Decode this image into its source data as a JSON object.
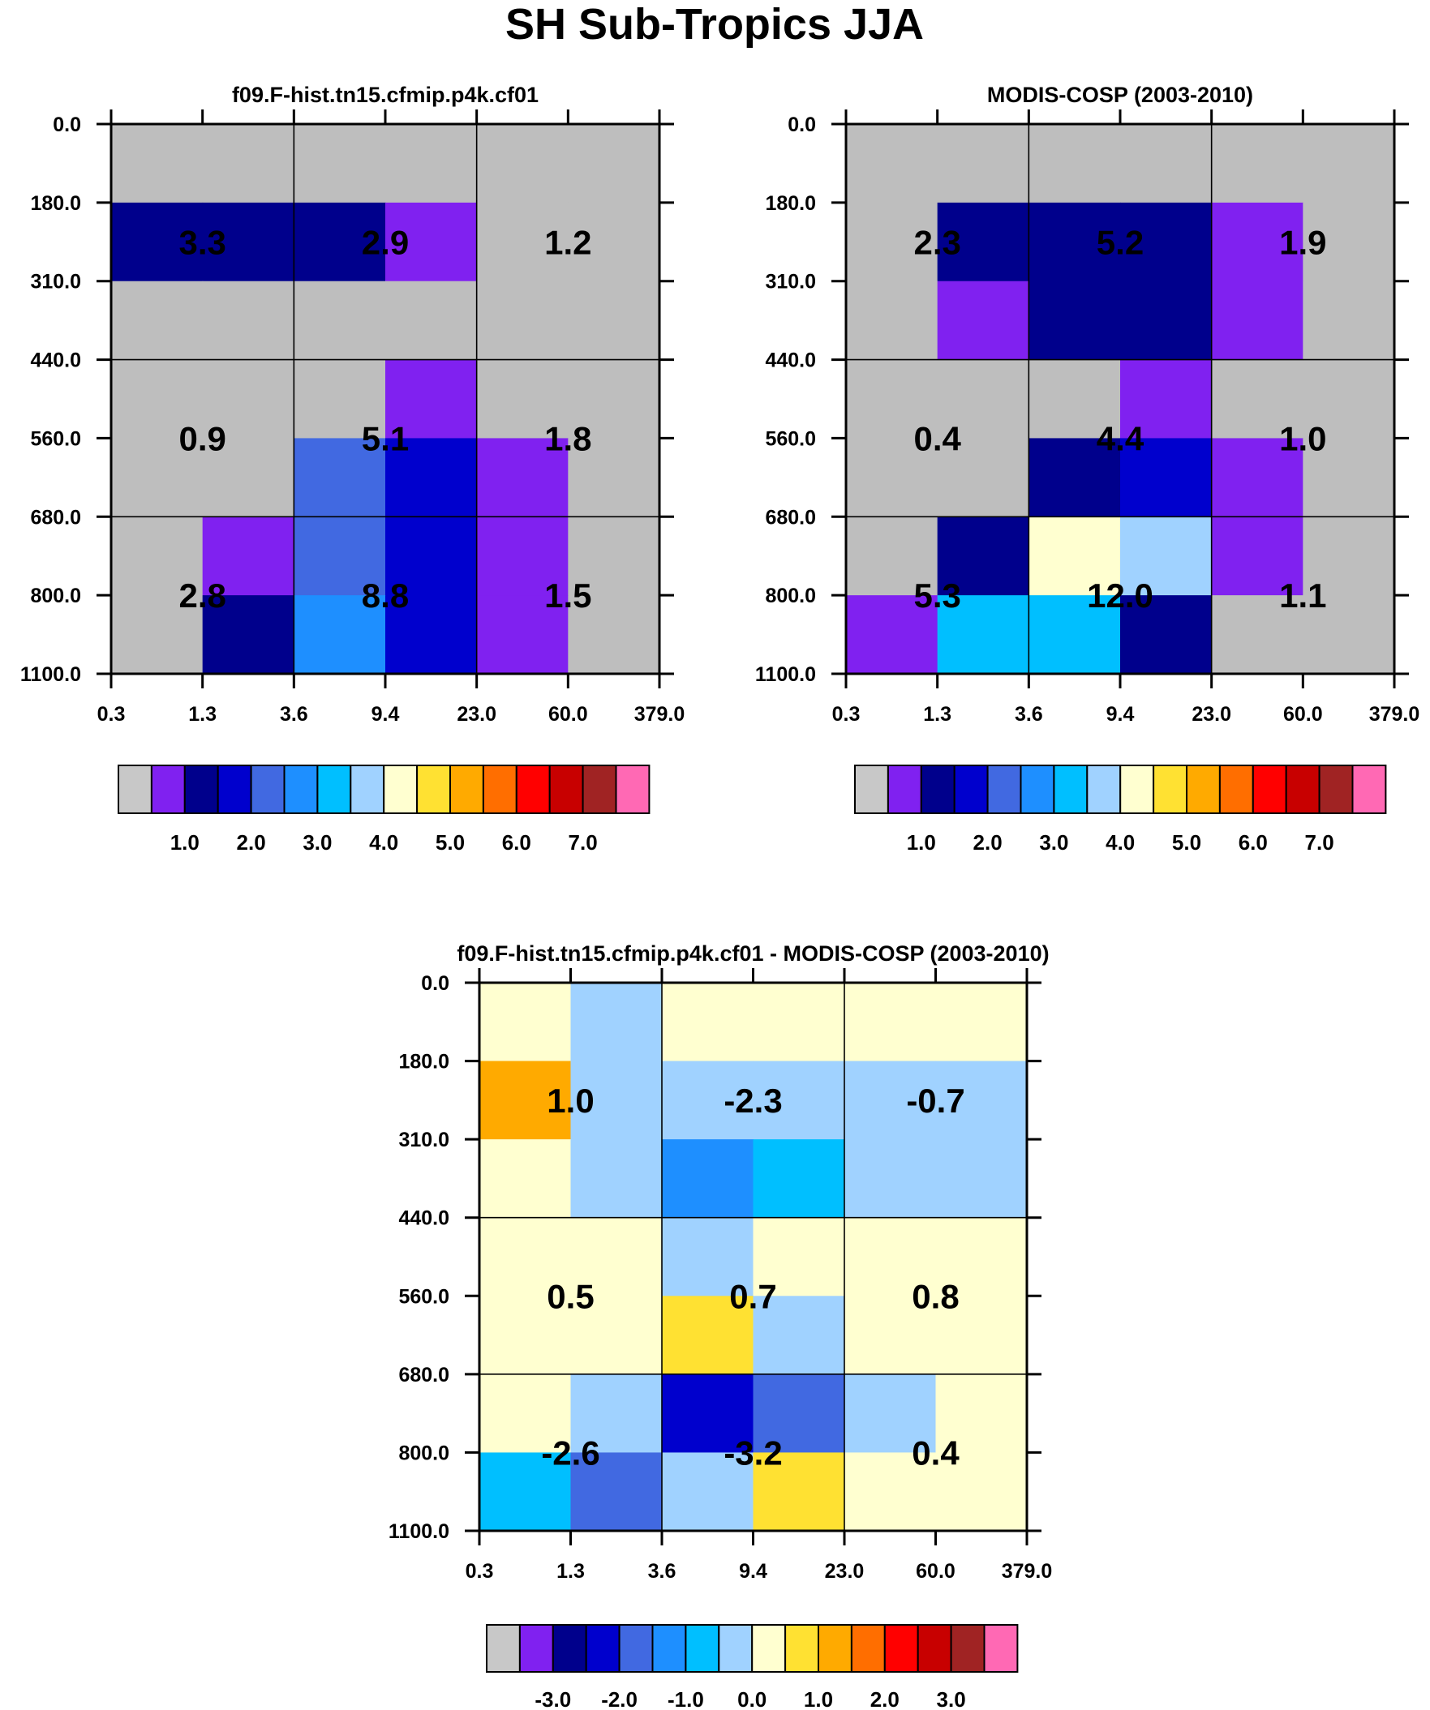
{
  "figure": {
    "title": "SH Sub-Tropics JJA"
  },
  "chart_data": [
    {
      "id": "model",
      "type": "heatmap",
      "title": "f09.F-hist.tn15.cfmip.p4k.cf01",
      "x_tick_labels": [
        "0.3",
        "1.3",
        "3.6",
        "9.4",
        "23.0",
        "60.0",
        "379.0"
      ],
      "y_tick_labels": [
        "0.0",
        "180.0",
        "310.0",
        "440.0",
        "560.0",
        "680.0",
        "800.0",
        "1100.0"
      ],
      "cells": [
        [
          "gray",
          "gray",
          "gray",
          "gray",
          "gray",
          "gray"
        ],
        [
          "navy",
          "navy",
          "navy",
          "purple",
          "gray",
          "gray"
        ],
        [
          "gray",
          "gray",
          "gray",
          "gray",
          "gray",
          "gray"
        ],
        [
          "gray",
          "gray",
          "gray",
          "purple",
          "gray",
          "gray"
        ],
        [
          "gray",
          "gray",
          "royal",
          "blue",
          "purple",
          "gray"
        ],
        [
          "gray",
          "purple",
          "royal",
          "blue",
          "purple",
          "gray"
        ],
        [
          "gray",
          "navy",
          "dodger",
          "blue",
          "purple",
          "gray"
        ]
      ],
      "block_values": [
        [
          "3.3",
          "2.9",
          "1.2"
        ],
        [
          "0.9",
          "5.1",
          "1.8"
        ],
        [
          "2.8",
          "8.8",
          "1.5"
        ]
      ],
      "colorbar": {
        "colors": [
          "gray",
          "purple",
          "navy",
          "blue",
          "royal",
          "dodger",
          "deepsky",
          "lightblue",
          "lightyellow",
          "gold",
          "orange",
          "darkorange",
          "red",
          "darkred",
          "brown",
          "pink"
        ],
        "labels": [
          "1.0",
          "2.0",
          "3.0",
          "4.0",
          "5.0",
          "6.0",
          "7.0"
        ]
      }
    },
    {
      "id": "obs",
      "type": "heatmap",
      "title": "MODIS-COSP (2003-2010)",
      "x_tick_labels": [
        "0.3",
        "1.3",
        "3.6",
        "9.4",
        "23.0",
        "60.0",
        "379.0"
      ],
      "y_tick_labels": [
        "0.0",
        "180.0",
        "310.0",
        "440.0",
        "560.0",
        "680.0",
        "800.0",
        "1100.0"
      ],
      "cells": [
        [
          "gray",
          "gray",
          "gray",
          "gray",
          "gray",
          "gray"
        ],
        [
          "gray",
          "navy",
          "navy",
          "navy",
          "purple",
          "gray"
        ],
        [
          "gray",
          "purple",
          "navy",
          "navy",
          "purple",
          "gray"
        ],
        [
          "gray",
          "gray",
          "gray",
          "purple",
          "gray",
          "gray"
        ],
        [
          "gray",
          "gray",
          "navy",
          "blue",
          "purple",
          "gray"
        ],
        [
          "gray",
          "navy",
          "lightyellow",
          "lightblue",
          "purple",
          "gray"
        ],
        [
          "purple",
          "deepsky",
          "deepsky",
          "navy",
          "gray",
          "gray"
        ]
      ],
      "block_values": [
        [
          "2.3",
          "5.2",
          "1.9"
        ],
        [
          "0.4",
          "4.4",
          "1.0"
        ],
        [
          "5.3",
          "12.0",
          "1.1"
        ]
      ],
      "colorbar": {
        "colors": [
          "gray",
          "purple",
          "navy",
          "blue",
          "royal",
          "dodger",
          "deepsky",
          "lightblue",
          "lightyellow",
          "gold",
          "orange",
          "darkorange",
          "red",
          "darkred",
          "brown",
          "pink"
        ],
        "labels": [
          "1.0",
          "2.0",
          "3.0",
          "4.0",
          "5.0",
          "6.0",
          "7.0"
        ]
      }
    },
    {
      "id": "diff",
      "type": "heatmap",
      "title": "f09.F-hist.tn15.cfmip.p4k.cf01 - MODIS-COSP (2003-2010)",
      "x_tick_labels": [
        "0.3",
        "1.3",
        "3.6",
        "9.4",
        "23.0",
        "60.0",
        "379.0"
      ],
      "y_tick_labels": [
        "0.0",
        "180.0",
        "310.0",
        "440.0",
        "560.0",
        "680.0",
        "800.0",
        "1100.0"
      ],
      "cells": [
        [
          "lightyellow",
          "lightblue",
          "lightyellow",
          "lightyellow",
          "lightyellow",
          "lightyellow"
        ],
        [
          "orange",
          "lightblue",
          "lightblue",
          "lightblue",
          "lightblue",
          "lightblue"
        ],
        [
          "lightyellow",
          "lightblue",
          "dodger",
          "deepsky",
          "lightblue",
          "lightblue"
        ],
        [
          "lightyellow",
          "lightyellow",
          "lightblue",
          "lightyellow",
          "lightyellow",
          "lightyellow"
        ],
        [
          "lightyellow",
          "lightyellow",
          "gold",
          "lightblue",
          "lightyellow",
          "lightyellow"
        ],
        [
          "lightyellow",
          "lightblue",
          "blue",
          "royal",
          "lightblue",
          "lightyellow"
        ],
        [
          "deepsky",
          "royal",
          "lightblue",
          "gold",
          "lightyellow",
          "lightyellow"
        ]
      ],
      "block_values": [
        [
          "1.0",
          "-2.3",
          "-0.7"
        ],
        [
          "0.5",
          "0.7",
          "0.8"
        ],
        [
          "-2.6",
          "-3.2",
          "0.4"
        ]
      ],
      "colorbar": {
        "colors": [
          "gray",
          "purple",
          "navy",
          "blue",
          "royal",
          "dodger",
          "deepsky",
          "lightblue",
          "lightyellow",
          "gold",
          "orange",
          "darkorange",
          "red",
          "darkred",
          "brown",
          "pink"
        ],
        "labels": [
          "-3.0",
          "-2.0",
          "-1.0",
          "0.0",
          "1.0",
          "2.0",
          "3.0"
        ]
      }
    }
  ],
  "palette": {
    "gray": "#bebebe",
    "purple": "#8021f0",
    "navy": "#00008c",
    "blue": "#0000cd",
    "royal": "#4169e1",
    "dodger": "#1e8fff",
    "deepsky": "#00bfff",
    "lightblue": "#a0d2ff",
    "lightyellow": "#ffffd0",
    "gold": "#ffe132",
    "orange": "#ffaa00",
    "darkorange": "#ff6e00",
    "red": "#ff0000",
    "darkred": "#c80000",
    "brown": "#a02323",
    "pink": "#ff69b4",
    "colorbar_gray": "#c8c8c8"
  }
}
